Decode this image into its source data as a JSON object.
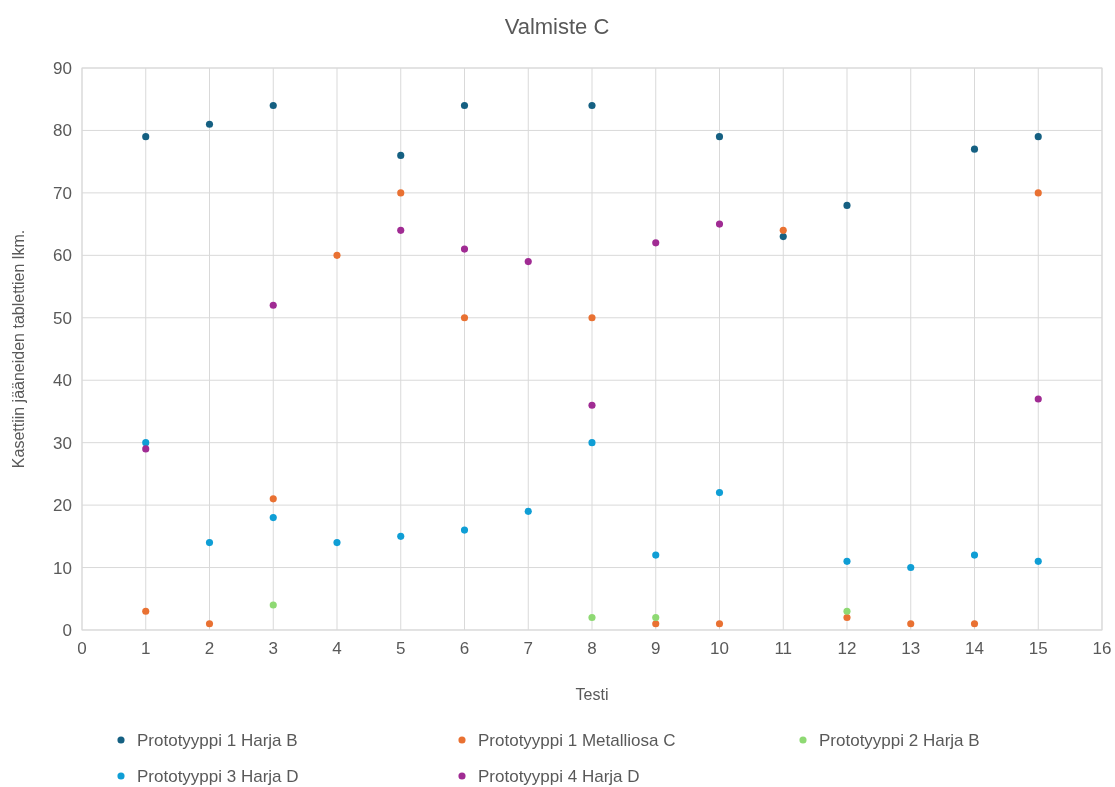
{
  "chart_data": {
    "type": "scatter",
    "title": "Valmiste C",
    "xlabel": "Testi",
    "ylabel": "Kasettiin jääneiden tablettien lkm.",
    "xlim": [
      0,
      16
    ],
    "xticks": [
      0,
      1,
      2,
      3,
      4,
      5,
      6,
      7,
      8,
      9,
      10,
      11,
      12,
      13,
      14,
      15,
      16
    ],
    "ylim": [
      0,
      90
    ],
    "yticks": [
      0,
      10,
      20,
      30,
      40,
      50,
      60,
      70,
      80,
      90
    ],
    "grid": true,
    "legend": "bottom",
    "marker": "circle",
    "series": [
      {
        "name": "Prototyyppi 1 Harja B",
        "color": "#156082",
        "x": [
          1,
          2,
          3,
          5,
          6,
          8,
          10,
          11,
          12,
          14,
          15
        ],
        "values": [
          79,
          81,
          84,
          76,
          84,
          84,
          79,
          63,
          68,
          77,
          79
        ]
      },
      {
        "name": "Prototyyppi 1 Metalliosa C",
        "color": "#e97132",
        "x": [
          1,
          2,
          3,
          4,
          5,
          6,
          8,
          9,
          10,
          11,
          12,
          13,
          14,
          15
        ],
        "values": [
          3,
          1,
          21,
          60,
          70,
          50,
          50,
          1,
          1,
          64,
          2,
          1,
          1,
          70
        ]
      },
      {
        "name": "Prototyyppi 2 Harja B",
        "color": "#8ed973",
        "x": [
          3,
          8,
          9,
          12
        ],
        "values": [
          4,
          2,
          2,
          3
        ]
      },
      {
        "name": "Prototyyppi 3 Harja D",
        "color": "#0f9ed5",
        "x": [
          1,
          2,
          3,
          4,
          5,
          6,
          7,
          8,
          9,
          10,
          12,
          13,
          14,
          15
        ],
        "values": [
          30,
          14,
          18,
          14,
          15,
          16,
          19,
          30,
          12,
          22,
          11,
          10,
          12,
          11
        ]
      },
      {
        "name": "Prototyyppi 4 Harja D",
        "color": "#a02b93",
        "x": [
          1,
          3,
          5,
          6,
          7,
          8,
          9,
          10,
          15
        ],
        "values": [
          29,
          52,
          64,
          61,
          59,
          36,
          62,
          65,
          37
        ]
      }
    ]
  }
}
